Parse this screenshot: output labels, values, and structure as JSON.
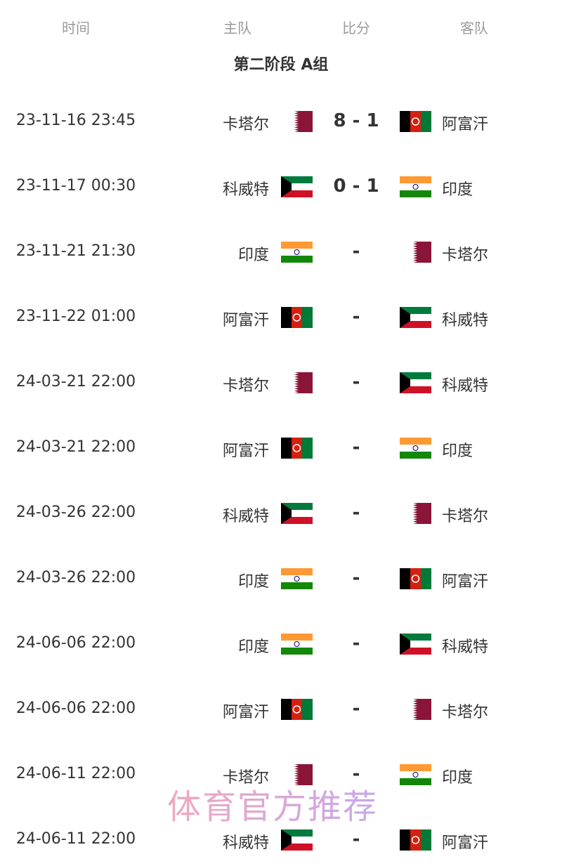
{
  "headers": {
    "time": "时间",
    "home": "主队",
    "score": "比分",
    "away": "客队"
  },
  "group_title": "第二阶段 A组",
  "flag_colors": {
    "卡塔尔": "#8a1538",
    "阿富汗": [
      "#000000",
      "#d32011",
      "#007a36"
    ],
    "科威特": [
      "#007a3d",
      "#ffffff",
      "#ce1126",
      "#000000"
    ],
    "印度": [
      "#ff9933",
      "#ffffff",
      "#138808",
      "#000080"
    ]
  },
  "matches": [
    {
      "time": "23-11-16 23:45",
      "home": "卡塔尔",
      "score": "8 - 1",
      "away": "阿富汗"
    },
    {
      "time": "23-11-17 00:30",
      "home": "科威特",
      "score": "0 - 1",
      "away": "印度"
    },
    {
      "time": "23-11-21 21:30",
      "home": "印度",
      "score": "-",
      "away": "卡塔尔"
    },
    {
      "time": "23-11-22 01:00",
      "home": "阿富汗",
      "score": "-",
      "away": "科威特"
    },
    {
      "time": "24-03-21 22:00",
      "home": "卡塔尔",
      "score": "-",
      "away": "科威特"
    },
    {
      "time": "24-03-21 22:00",
      "home": "阿富汗",
      "score": "-",
      "away": "印度"
    },
    {
      "time": "24-03-26 22:00",
      "home": "科威特",
      "score": "-",
      "away": "卡塔尔"
    },
    {
      "time": "24-03-26 22:00",
      "home": "印度",
      "score": "-",
      "away": "阿富汗"
    },
    {
      "time": "24-06-06 22:00",
      "home": "印度",
      "score": "-",
      "away": "科威特"
    },
    {
      "time": "24-06-06 22:00",
      "home": "阿富汗",
      "score": "-",
      "away": "卡塔尔"
    },
    {
      "time": "24-06-11 22:00",
      "home": "卡塔尔",
      "score": "-",
      "away": "印度"
    },
    {
      "time": "24-06-11 22:00",
      "home": "科威特",
      "score": "-",
      "away": "阿富汗"
    }
  ],
  "watermark": "体育官方推荐"
}
